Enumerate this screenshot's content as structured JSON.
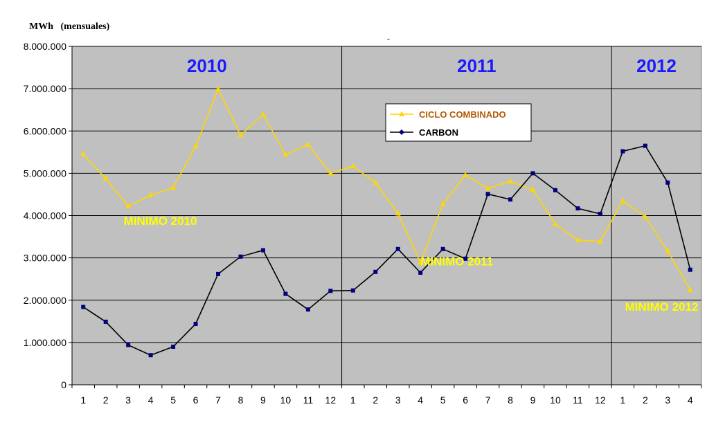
{
  "unit_label": "MWh   (mensuales)",
  "stray_mark": "-",
  "colors": {
    "plot_bg": "#c0c0c0",
    "ciclo": "#ffd700",
    "carbon": "#000000",
    "carbon_marker": "#000080",
    "year_text": "#1a1aff",
    "annotation": "#ffff00",
    "legend_ciclo_text": "#b35900"
  },
  "chart_data": {
    "type": "line",
    "x": [
      1,
      2,
      3,
      4,
      5,
      6,
      7,
      8,
      9,
      10,
      11,
      12,
      13,
      14,
      15,
      16,
      17,
      18,
      19,
      20,
      21,
      22,
      23,
      24,
      25,
      26,
      27,
      28
    ],
    "x_tick_labels": [
      "1",
      "2",
      "3",
      "4",
      "5",
      "6",
      "7",
      "8",
      "9",
      "10",
      "11",
      "12",
      "1",
      "2",
      "3",
      "4",
      "5",
      "6",
      "7",
      "8",
      "9",
      "10",
      "11",
      "12",
      "1",
      "2",
      "3",
      "4"
    ],
    "ylim": [
      0,
      8000000
    ],
    "y_ticks": [
      0,
      1000000,
      2000000,
      3000000,
      4000000,
      5000000,
      6000000,
      7000000,
      8000000
    ],
    "y_tick_labels": [
      "0",
      "1.000.000",
      "2.000.000",
      "3.000.000",
      "4.000.000",
      "5.000.000",
      "6.000.000",
      "7.000.000",
      "8.000.000"
    ],
    "grid": true,
    "legend_position": "top-center",
    "series": [
      {
        "name": "CICLO COMBINADO",
        "color": "#ffd700",
        "marker": "triangle",
        "values": [
          5450000,
          4880000,
          4220000,
          4480000,
          4660000,
          5640000,
          6990000,
          5900000,
          6390000,
          5440000,
          5680000,
          5000000,
          5170000,
          4780000,
          4050000,
          2890000,
          4270000,
          4960000,
          4640000,
          4810000,
          4610000,
          3800000,
          3420000,
          3390000,
          4350000,
          3970000,
          3160000,
          2240000
        ]
      },
      {
        "name": "CARBON",
        "color": "#000000",
        "marker": "square",
        "values": [
          1840000,
          1490000,
          940000,
          700000,
          900000,
          1440000,
          2620000,
          3030000,
          3180000,
          2150000,
          1780000,
          2220000,
          2230000,
          2670000,
          3210000,
          2650000,
          3210000,
          2980000,
          4510000,
          4380000,
          5000000,
          4600000,
          4170000,
          4040000,
          5520000,
          5650000,
          4780000,
          2720000
        ]
      }
    ],
    "year_labels": [
      {
        "text": "2010",
        "center_x": 6.5
      },
      {
        "text": "2011",
        "center_x": 18.5
      },
      {
        "text": "2012",
        "center_x": 26.5
      }
    ],
    "year_dividers": [
      12.5,
      24.5
    ],
    "annotations": [
      {
        "text": "MINIMO 2010",
        "x": 2.8,
        "y": 3780000
      },
      {
        "text": "MINIMO 2011",
        "x": 16.0,
        "y": 2820000
      },
      {
        "text": "MINIMO 2012",
        "x": 25.1,
        "y": 1750000
      }
    ]
  }
}
